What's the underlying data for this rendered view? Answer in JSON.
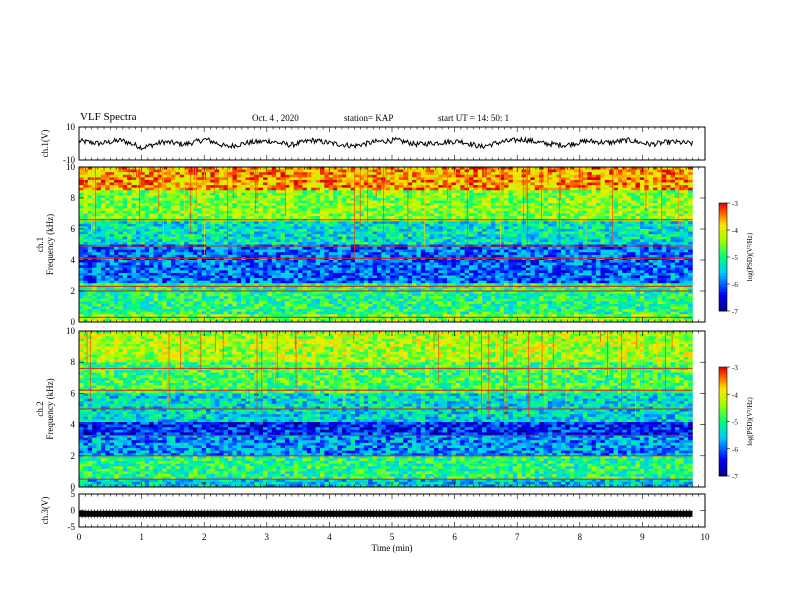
{
  "header": {
    "title": "VLF Spectra",
    "date": "Oct. 4 , 2020",
    "station": "station= KAP",
    "start": "start  UT =   14: 50: 1"
  },
  "chart_data": [
    {
      "type": "line",
      "name": "ch1-waveform",
      "ylabel": "ch.1(V)",
      "ylim": [
        -10,
        10
      ],
      "y_ticks": [
        "10",
        "-10"
      ],
      "x_range_min": [
        0,
        9.8
      ],
      "note_values": "noisy envelope oscillating roughly between -3 and +3 V",
      "y": [
        2.5,
        1.0,
        3.0,
        -1.5,
        2.0,
        0.5,
        3.5,
        -1.0,
        1.5,
        2.5,
        0.0,
        3.0,
        1.0,
        -0.5,
        2.0,
        3.0,
        0.5,
        1.5,
        2.5,
        -1.0,
        2.0,
        3.5,
        1.0,
        0.0,
        2.5,
        1.5,
        3.0,
        0.5,
        2.0,
        1.0
      ]
    },
    {
      "type": "heatmap",
      "name": "ch1-spectrogram",
      "ylabel": "ch.1\nFrequency (kHz)",
      "ylim": [
        0,
        10
      ],
      "y_ticks": [
        "0",
        "2",
        "4",
        "6",
        "8",
        "10"
      ],
      "x_range_min": [
        0,
        9.8
      ],
      "colorbar": {
        "label": "log(PSD)(V²/Hz)",
        "range": [
          -7,
          -3
        ],
        "ticks": [
          "-3",
          "-4",
          "-5",
          "-6",
          "-7"
        ]
      },
      "bands_khz": [
        {
          "from": 0,
          "to": 0.5,
          "level": -4.5
        },
        {
          "from": 0.5,
          "to": 2.5,
          "level": -5.0
        },
        {
          "from": 2.5,
          "to": 5.0,
          "level": -6.0
        },
        {
          "from": 5.0,
          "to": 6.5,
          "level": -5.3
        },
        {
          "from": 6.5,
          "to": 8.5,
          "level": -4.5
        },
        {
          "from": 8.5,
          "to": 10,
          "level": -3.6
        }
      ],
      "lines_khz": [
        0.3,
        2.0,
        2.3,
        4.1,
        4.9,
        6.6
      ]
    },
    {
      "type": "heatmap",
      "name": "ch2-spectrogram",
      "ylabel": "ch.2\nFrequency (kHz)",
      "ylim": [
        0,
        10
      ],
      "y_ticks": [
        "0",
        "2",
        "4",
        "6",
        "8",
        "10"
      ],
      "x_range_min": [
        0,
        9.8
      ],
      "colorbar": {
        "label": "log(PSD)(V²/Hz)",
        "range": [
          -7,
          -3
        ],
        "ticks": [
          "-3",
          "-4",
          "-5",
          "-6",
          "-7"
        ]
      },
      "bands_khz": [
        {
          "from": 0,
          "to": 0.5,
          "level": -5.5
        },
        {
          "from": 0.5,
          "to": 2.0,
          "level": -5.0
        },
        {
          "from": 2.0,
          "to": 3.4,
          "level": -5.8
        },
        {
          "from": 3.4,
          "to": 4.2,
          "level": -6.3
        },
        {
          "from": 4.2,
          "to": 6.0,
          "level": -5.4
        },
        {
          "from": 6.0,
          "to": 8.0,
          "level": -4.8
        },
        {
          "from": 8.0,
          "to": 10,
          "level": -4.3
        }
      ],
      "lines_khz": [
        0.5,
        2.0,
        3.3,
        5.0,
        6.2,
        7.6
      ]
    },
    {
      "type": "line",
      "name": "ch3-waveform",
      "ylabel": "ch.3(V)",
      "ylim": [
        -5,
        5
      ],
      "y_ticks": [
        "5",
        "0",
        "-5"
      ],
      "x_range_min": [
        0,
        9.8
      ],
      "note_values": "dense thick trace near -1 V",
      "y_level": -1
    }
  ],
  "x_axis": {
    "label": "Time  (min)",
    "ticks": [
      "0",
      "1",
      "2",
      "3",
      "4",
      "5",
      "6",
      "7",
      "8",
      "9",
      "10"
    ],
    "range": [
      0,
      10
    ]
  }
}
